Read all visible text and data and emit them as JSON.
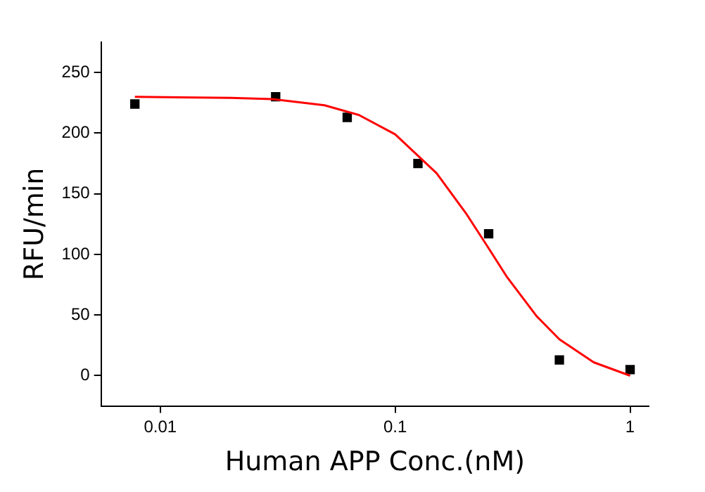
{
  "chart_data": {
    "type": "scatter",
    "xlabel": "Human APP Conc.(nM)",
    "ylabel": "RFU/min",
    "log": "x",
    "marker": "square",
    "grid": false,
    "legend": false,
    "xlim": [
      0.0056,
      1.2
    ],
    "xticks": [
      0.01,
      0.1,
      1
    ],
    "ylim": [
      -25,
      275
    ],
    "yticks": [
      0,
      50,
      100,
      150,
      200,
      250
    ],
    "series": [
      {
        "type": "scatter",
        "color": "#000000",
        "x": [
          0.0078,
          0.031,
          0.0625,
          0.125,
          0.25,
          0.5,
          1
        ],
        "values": [
          224,
          230,
          213,
          175,
          117,
          13,
          5
        ]
      },
      {
        "type": "line",
        "color": "#ff0000",
        "marker": "none",
        "x": [
          0.0078,
          0.02,
          0.03,
          0.05,
          0.07,
          0.1,
          0.15,
          0.2,
          0.25,
          0.3,
          0.4,
          0.5,
          0.7,
          1
        ],
        "values": [
          230,
          229,
          228,
          223,
          215,
          199,
          167,
          134,
          105,
          81,
          49,
          30,
          11,
          0
        ]
      }
    ]
  }
}
